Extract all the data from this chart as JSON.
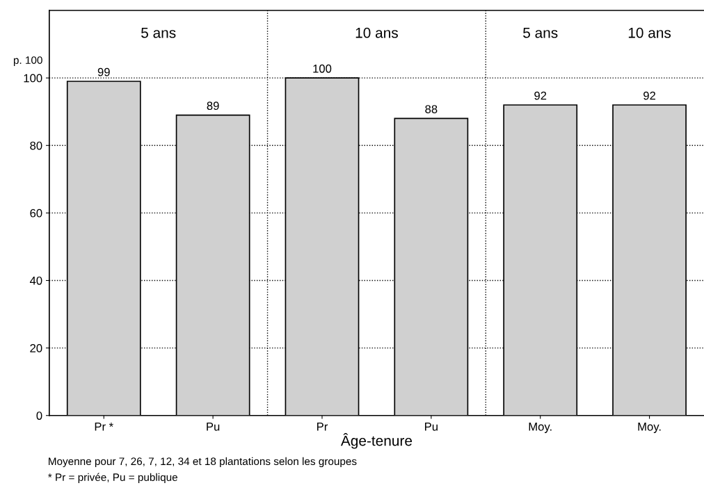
{
  "chart_data": {
    "type": "bar",
    "categories": [
      "Pr *",
      "Pu",
      "Pr",
      "Pu",
      "Moy.",
      "Moy."
    ],
    "values": [
      99,
      89,
      100,
      88,
      92,
      92
    ],
    "color": "#d0d0d0",
    "data_labels": true,
    "ylabel": "p. 100",
    "xlabel": "Âge-tenure",
    "ylim": [
      0,
      120
    ],
    "yticks": [
      0,
      20,
      40,
      60,
      80,
      100
    ],
    "grid": "y",
    "annotations": [
      "5 ans",
      "10 ans",
      "5 ans",
      "10 ans",
      "Moyenne pour 7, 26, 7, 12, 34 et 18 plantations selon les groupes",
      "* Pr = privée, Pu = publique"
    ]
  }
}
